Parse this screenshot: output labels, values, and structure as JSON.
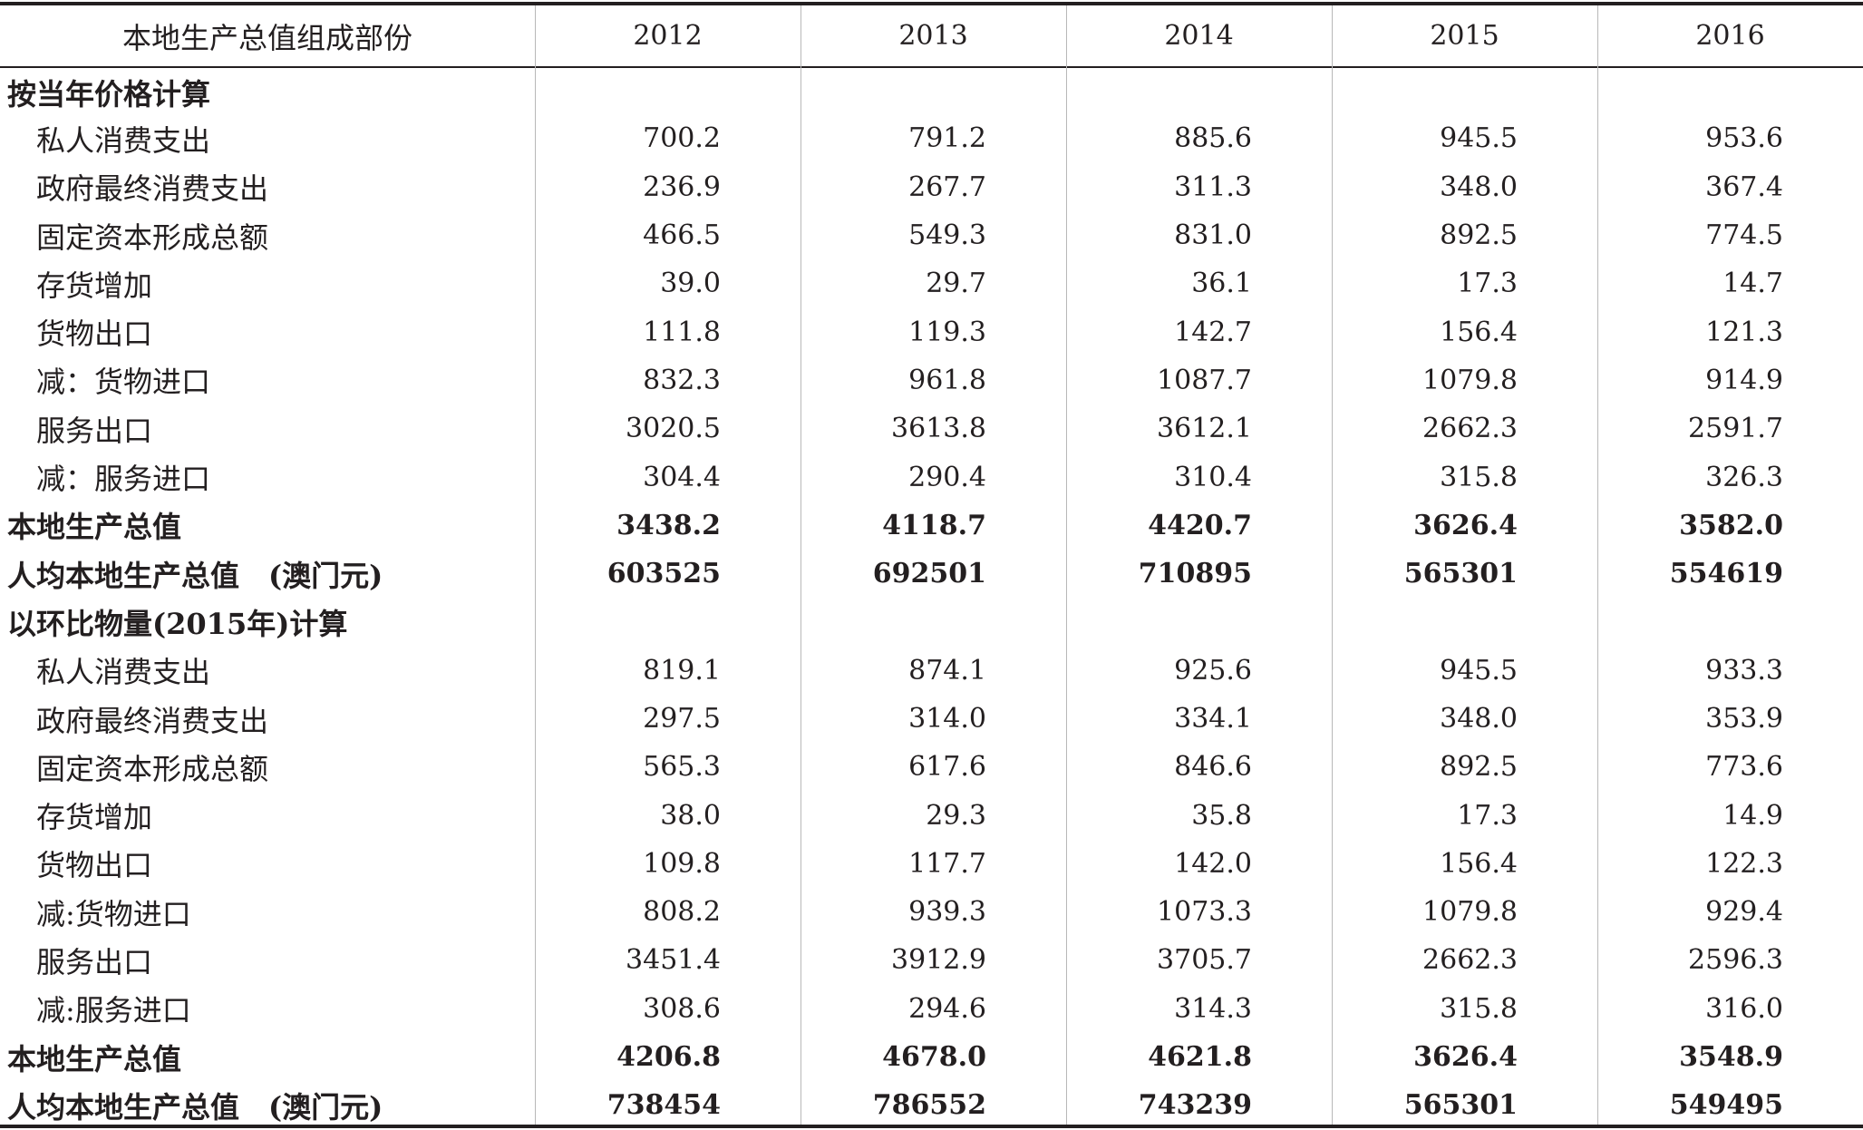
{
  "table": {
    "header": [
      "本地生产总值组成部份",
      "2012",
      "2013",
      "2014",
      "2015",
      "2016"
    ],
    "rows": [
      {
        "type": "section",
        "label": "按当年价格计算",
        "values": [
          "",
          "",
          "",
          "",
          ""
        ]
      },
      {
        "type": "item",
        "label": "私人消费支出",
        "values": [
          "700.2",
          "791.2",
          "885.6",
          "945.5",
          "953.6"
        ]
      },
      {
        "type": "item",
        "label": "政府最终消费支出",
        "values": [
          "236.9",
          "267.7",
          "311.3",
          "348.0",
          "367.4"
        ]
      },
      {
        "type": "item",
        "label": "固定资本形成总额",
        "values": [
          "466.5",
          "549.3",
          "831.0",
          "892.5",
          "774.5"
        ]
      },
      {
        "type": "item",
        "label": "存货增加",
        "values": [
          "39.0",
          "29.7",
          "36.1",
          "17.3",
          "14.7"
        ]
      },
      {
        "type": "item",
        "label": "货物出口",
        "values": [
          "111.8",
          "119.3",
          "142.7",
          "156.4",
          "121.3"
        ]
      },
      {
        "type": "item",
        "label": "减：货物进口",
        "values": [
          "832.3",
          "961.8",
          "1087.7",
          "1079.8",
          "914.9"
        ]
      },
      {
        "type": "item",
        "label": "服务出口",
        "values": [
          "3020.5",
          "3613.8",
          "3612.1",
          "2662.3",
          "2591.7"
        ]
      },
      {
        "type": "item",
        "label": "减：服务进口",
        "values": [
          "304.4",
          "290.4",
          "310.4",
          "315.8",
          "326.3"
        ]
      },
      {
        "type": "total",
        "label": "本地生产总值",
        "values": [
          "3438.2",
          "4118.7",
          "4420.7",
          "3626.4",
          "3582.0"
        ]
      },
      {
        "type": "total",
        "label": "人均本地生产总值　(澳门元)",
        "values": [
          "603525",
          "692501",
          "710895",
          "565301",
          "554619"
        ]
      },
      {
        "type": "section",
        "label": "以环比物量(2015年)计算",
        "values": [
          "",
          "",
          "",
          "",
          ""
        ]
      },
      {
        "type": "item",
        "label": "私人消费支出",
        "values": [
          "819.1",
          "874.1",
          "925.6",
          "945.5",
          "933.3"
        ]
      },
      {
        "type": "item",
        "label": "政府最终消费支出",
        "values": [
          "297.5",
          "314.0",
          "334.1",
          "348.0",
          "353.9"
        ]
      },
      {
        "type": "item",
        "label": "固定资本形成总额",
        "values": [
          "565.3",
          "617.6",
          "846.6",
          "892.5",
          "773.6"
        ]
      },
      {
        "type": "item",
        "label": "存货增加",
        "values": [
          "38.0",
          "29.3",
          "35.8",
          "17.3",
          "14.9"
        ]
      },
      {
        "type": "item",
        "label": "货物出口",
        "values": [
          "109.8",
          "117.7",
          "142.0",
          "156.4",
          "122.3"
        ]
      },
      {
        "type": "item",
        "label": "减:货物进口",
        "values": [
          "808.2",
          "939.3",
          "1073.3",
          "1079.8",
          "929.4"
        ]
      },
      {
        "type": "item",
        "label": "服务出口",
        "values": [
          "3451.4",
          "3912.9",
          "3705.7",
          "2662.3",
          "2596.3"
        ]
      },
      {
        "type": "item",
        "label": "减:服务进口",
        "values": [
          "308.6",
          "294.6",
          "314.3",
          "315.8",
          "316.0"
        ]
      },
      {
        "type": "total",
        "label": "本地生产总值",
        "values": [
          "4206.8",
          "4678.0",
          "4621.8",
          "3626.4",
          "3548.9"
        ]
      },
      {
        "type": "total",
        "label": "人均本地生产总值　(澳门元)",
        "values": [
          "738454",
          "786552",
          "743239",
          "565301",
          "549495"
        ]
      }
    ]
  }
}
